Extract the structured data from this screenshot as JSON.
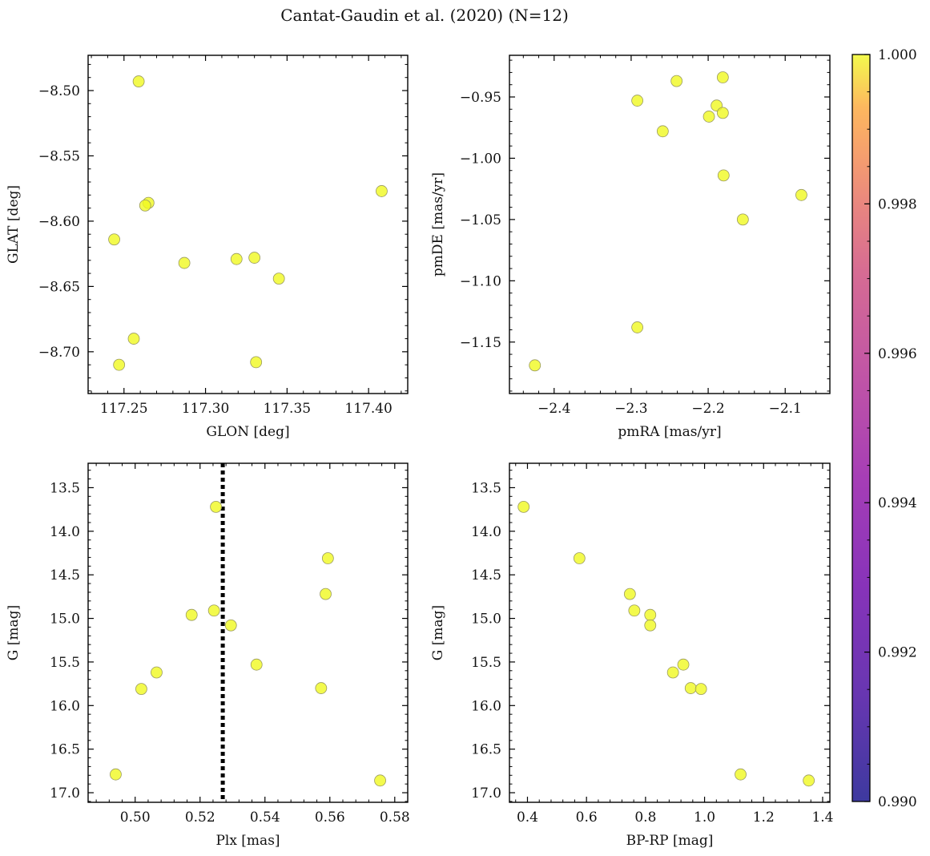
{
  "title": "Cantat-Gaudin et al. (2020) (N=12)",
  "colorbar": {
    "min": 0.99,
    "max": 1.0,
    "ticks": [
      0.99,
      0.992,
      0.994,
      0.996,
      0.998,
      1.0
    ],
    "tick_labels": [
      "0.990",
      "0.992",
      "0.994",
      "0.996",
      "0.998",
      "1.000"
    ],
    "colormap": "plasma"
  },
  "colors": {
    "point_fill": "#f0f921",
    "point_edge": "#9a9a60",
    "axis": "#000000",
    "vline": "#000000"
  },
  "chart_data": [
    {
      "type": "scatter",
      "name": "glon-glat",
      "xlabel": "GLON [deg]",
      "ylabel": "GLAT [deg]",
      "xlim": [
        117.228,
        117.424
      ],
      "ylim": [
        -8.732,
        -8.473
      ],
      "xticks": [
        117.25,
        117.3,
        117.35,
        117.4
      ],
      "xtick_labels": [
        "117.25",
        "117.30",
        "117.35",
        "117.40"
      ],
      "yticks": [
        -8.5,
        -8.55,
        -8.6,
        -8.65,
        -8.7
      ],
      "ytick_labels": [
        "−8.50",
        "−8.55",
        "−8.60",
        "−8.65",
        "−8.70"
      ],
      "x": [
        117.259,
        117.265,
        117.263,
        117.408,
        117.244,
        117.287,
        117.319,
        117.33,
        117.345,
        117.256,
        117.247,
        117.331
      ],
      "y": [
        -8.493,
        -8.586,
        -8.588,
        -8.577,
        -8.614,
        -8.632,
        -8.629,
        -8.628,
        -8.644,
        -8.69,
        -8.71,
        -8.708
      ],
      "c": [
        1,
        1,
        1,
        1,
        1,
        1,
        1,
        1,
        1,
        1,
        1,
        1
      ]
    },
    {
      "type": "scatter",
      "name": "pmra-pmde",
      "xlabel": "pmRA [mas/yr]",
      "ylabel": "pmDE [mas/yr]",
      "xlim": [
        -2.458,
        -2.042
      ],
      "ylim": [
        -1.192,
        -0.916
      ],
      "xticks": [
        -2.4,
        -2.3,
        -2.2,
        -2.1
      ],
      "xtick_labels": [
        "−2.4",
        "−2.3",
        "−2.2",
        "−2.1"
      ],
      "yticks": [
        -0.95,
        -1.0,
        -1.05,
        -1.1,
        -1.15
      ],
      "ytick_labels": [
        "−0.95",
        "−1.00",
        "−1.05",
        "−1.10",
        "−1.15"
      ],
      "x": [
        -2.292,
        -2.241,
        -2.181,
        -2.189,
        -2.199,
        -2.181,
        -2.259,
        -2.18,
        -2.079,
        -2.155,
        -2.292,
        -2.425
      ],
      "y": [
        -0.953,
        -0.937,
        -0.934,
        -0.957,
        -0.966,
        -0.963,
        -0.978,
        -1.014,
        -1.03,
        -1.05,
        -1.138,
        -1.169
      ],
      "c": [
        1,
        1,
        1,
        1,
        1,
        1,
        1,
        1,
        1,
        1,
        1,
        1
      ]
    },
    {
      "type": "scatter",
      "name": "plx-g",
      "xlabel": "Plx [mas]",
      "ylabel": "G [mag]",
      "xlim": [
        0.4855,
        0.584
      ],
      "ylim": [
        17.11,
        13.22
      ],
      "y_inverted": true,
      "xticks": [
        0.5,
        0.52,
        0.54,
        0.56,
        0.58
      ],
      "xtick_labels": [
        "0.50",
        "0.52",
        "0.54",
        "0.56",
        "0.58"
      ],
      "yticks": [
        13.5,
        14.0,
        14.5,
        15.0,
        15.5,
        16.0,
        16.5,
        17.0
      ],
      "ytick_labels": [
        "13.5",
        "14.0",
        "14.5",
        "15.0",
        "15.5",
        "16.0",
        "16.5",
        "17.0"
      ],
      "x": [
        0.5249,
        0.5594,
        0.5587,
        0.5174,
        0.5243,
        0.5295,
        0.5374,
        0.5066,
        0.5019,
        0.5573,
        0.494,
        0.5755
      ],
      "y": [
        13.72,
        14.31,
        14.72,
        14.96,
        14.91,
        15.08,
        15.53,
        15.62,
        15.81,
        15.8,
        16.79,
        16.86
      ],
      "c": [
        1,
        1,
        1,
        1,
        1,
        1,
        1,
        1,
        1,
        1,
        1,
        1
      ],
      "vline": 0.527
    },
    {
      "type": "scatter",
      "name": "bprp-g",
      "xlabel": "BP-RP [mag]",
      "ylabel": "G [mag]",
      "xlim": [
        0.339,
        1.4245
      ],
      "ylim": [
        17.11,
        13.22
      ],
      "y_inverted": true,
      "xticks": [
        0.4,
        0.6,
        0.8,
        1.0,
        1.2,
        1.4
      ],
      "xtick_labels": [
        "0.4",
        "0.6",
        "0.8",
        "1.0",
        "1.2",
        "1.4"
      ],
      "yticks": [
        13.5,
        14.0,
        14.5,
        15.0,
        15.5,
        16.0,
        16.5,
        17.0
      ],
      "ytick_labels": [
        "13.5",
        "14.0",
        "14.5",
        "15.0",
        "15.5",
        "16.0",
        "16.5",
        "17.0"
      ],
      "x": [
        0.387,
        0.576,
        0.747,
        0.762,
        0.816,
        0.816,
        0.928,
        0.893,
        0.953,
        0.988,
        1.122,
        1.353
      ],
      "y": [
        13.72,
        14.31,
        14.72,
        14.91,
        14.96,
        15.08,
        15.53,
        15.62,
        15.8,
        15.81,
        16.79,
        16.86
      ],
      "c": [
        1,
        1,
        1,
        1,
        1,
        1,
        1,
        1,
        1,
        1,
        1,
        1
      ]
    }
  ]
}
